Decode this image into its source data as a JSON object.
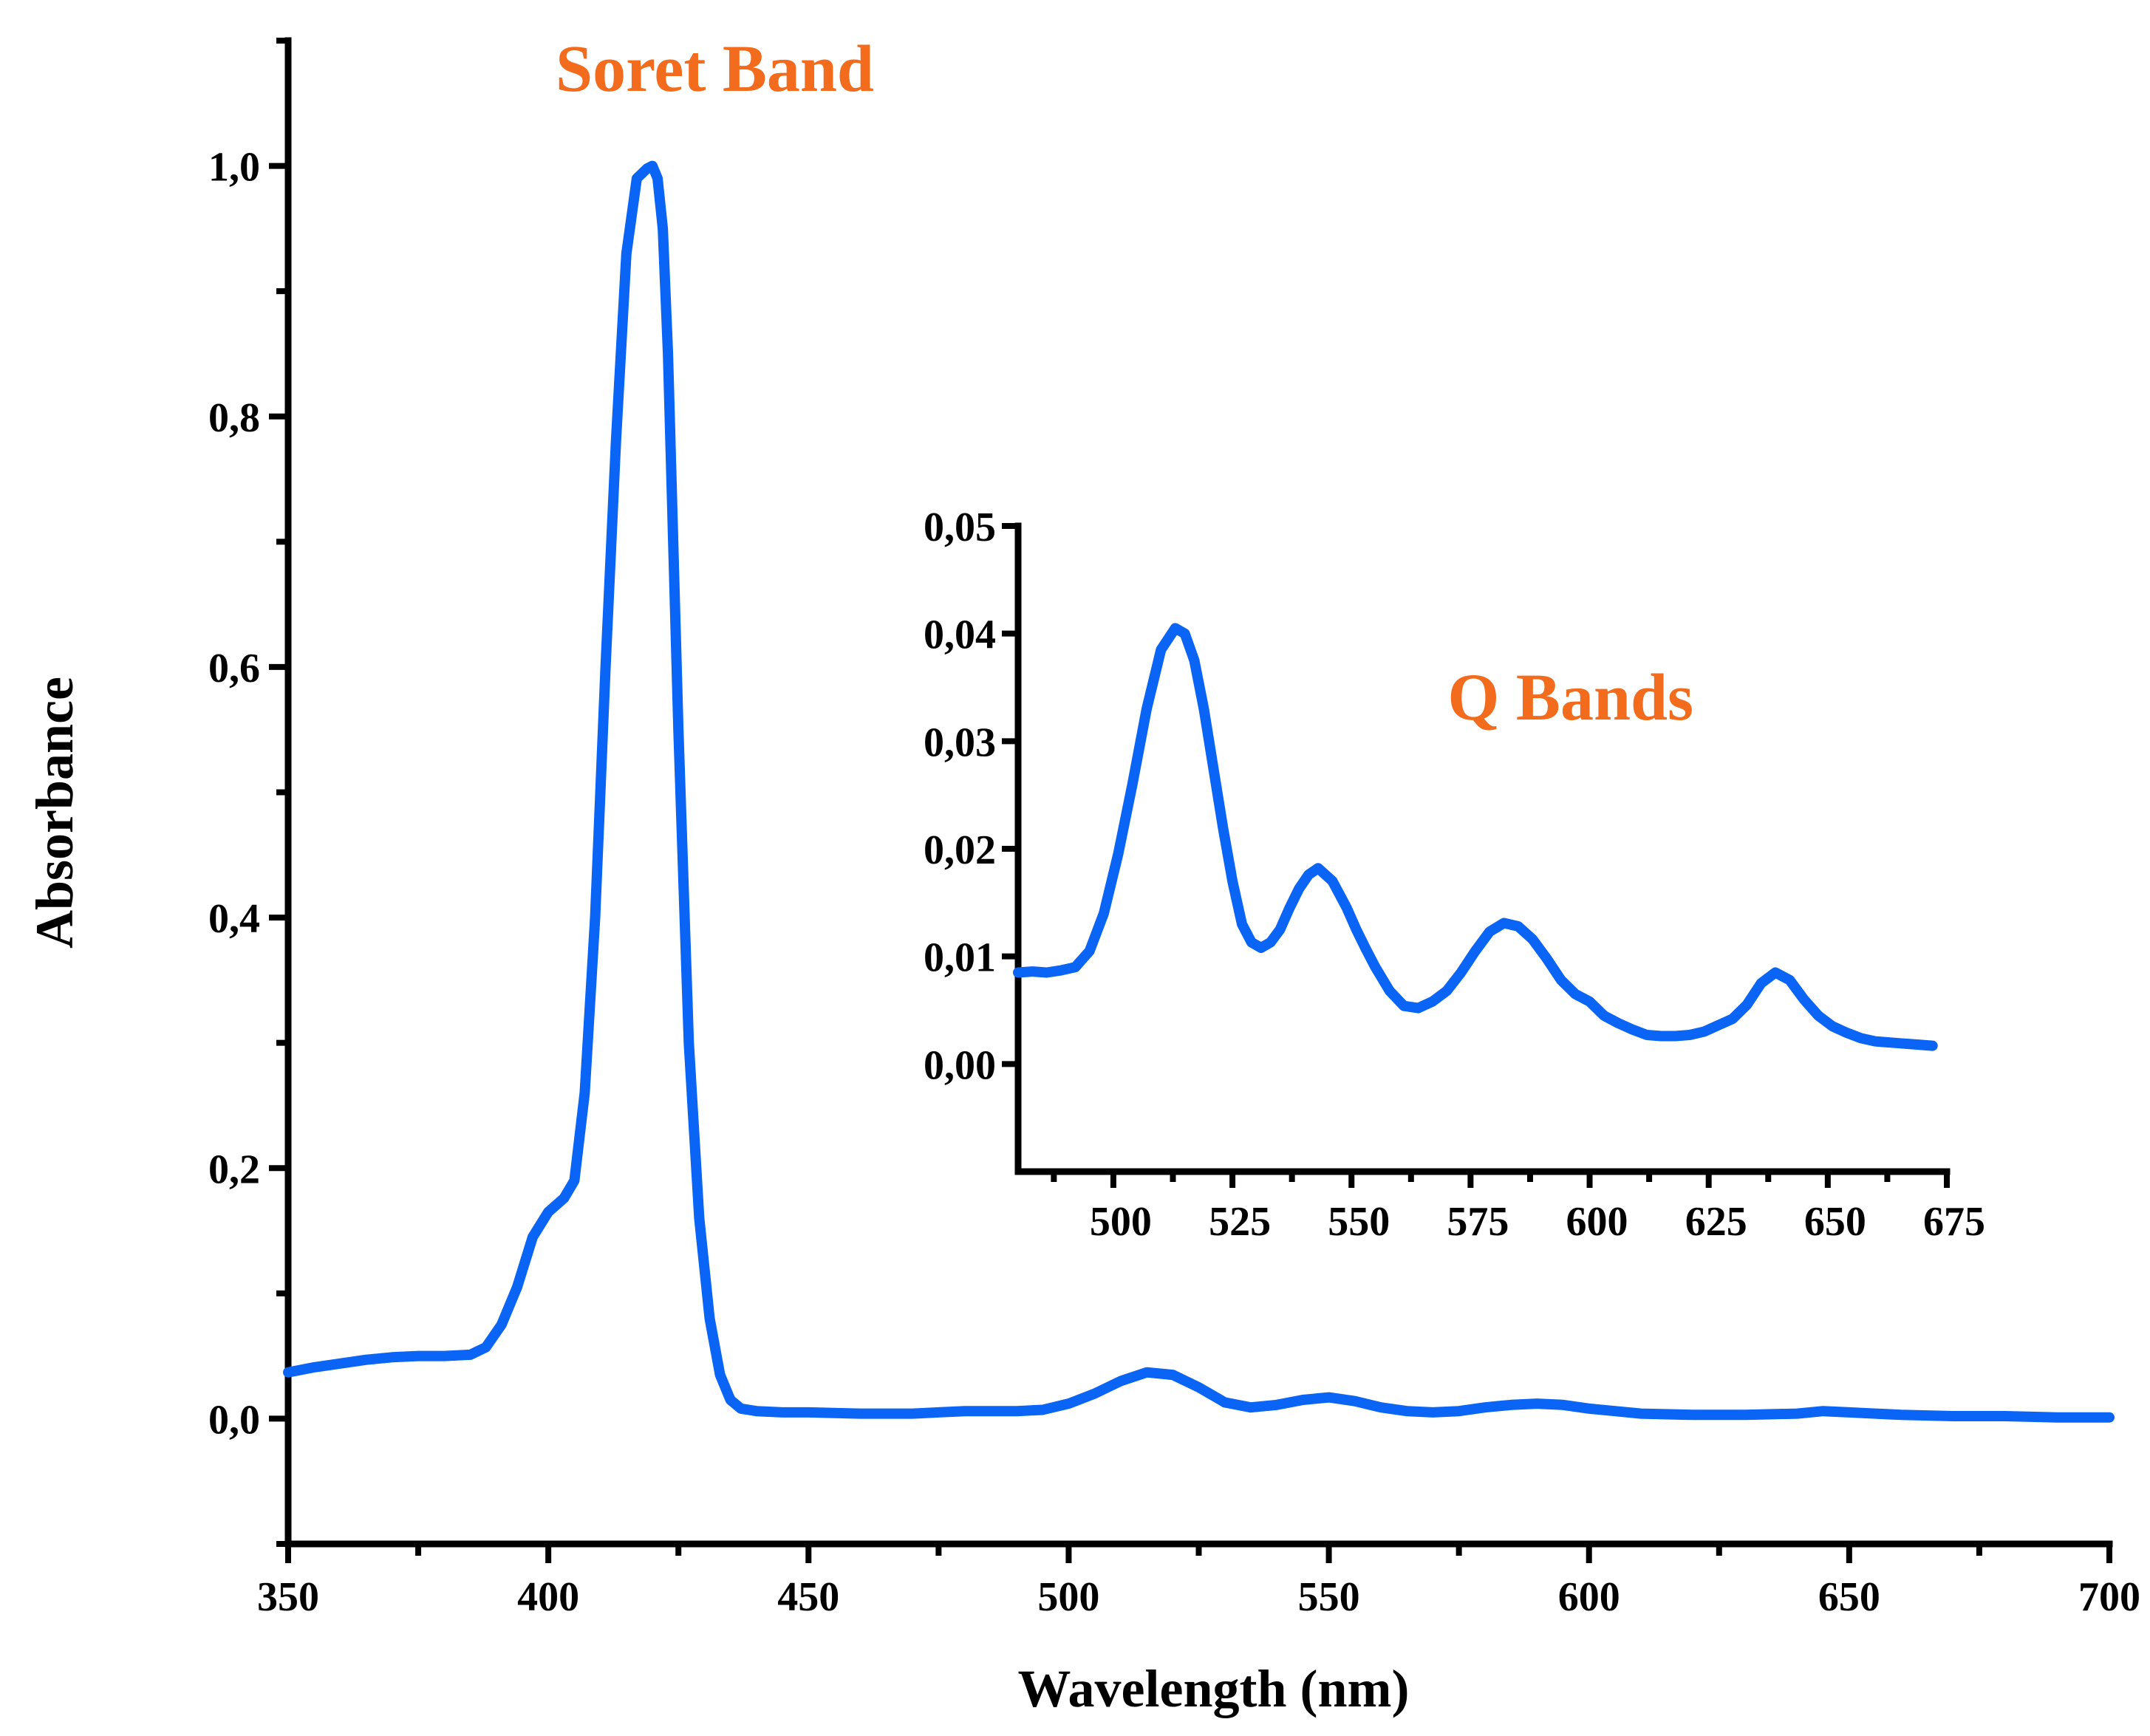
{
  "colors": {
    "series": "#0a64f5",
    "annotation": "#f36b1c",
    "axis": "#000000"
  },
  "chart_data": [
    {
      "type": "line",
      "role": "main",
      "title": "",
      "xlabel": "Wavelength (nm)",
      "ylabel": "Absorbance",
      "xlim": [
        350,
        700
      ],
      "ylim": [
        -0.1,
        1.1
      ],
      "x_ticks": [
        350,
        400,
        450,
        500,
        550,
        600,
        650,
        700
      ],
      "x_tick_labels": [
        "350",
        "400",
        "450",
        "500",
        "550",
        "600",
        "650",
        "700"
      ],
      "x_minor_ticks": [
        375,
        425,
        475,
        525,
        575,
        625,
        675
      ],
      "y_ticks": [
        0.0,
        0.2,
        0.4,
        0.6,
        0.8,
        1.0
      ],
      "y_tick_labels": [
        "0,0",
        "0,2",
        "0,4",
        "0,6",
        "0,8",
        "1,0"
      ],
      "y_minor_ticks": [
        -0.1,
        0.1,
        0.3,
        0.5,
        0.7,
        0.9,
        1.1
      ],
      "grid": false,
      "legend": "none",
      "annotations": [
        {
          "text": "Soret Band",
          "x": 432,
          "y": 1.06
        }
      ],
      "series": [
        {
          "x": [
            350,
            355,
            360,
            365,
            370,
            375,
            380,
            385,
            388,
            391,
            394,
            397,
            400,
            403,
            405,
            407,
            409,
            411,
            413,
            415,
            417,
            419,
            420,
            421,
            422,
            423,
            425,
            427,
            429,
            431,
            433,
            435,
            437,
            440,
            445,
            450,
            460,
            470,
            480,
            490,
            495,
            500,
            505,
            510,
            515,
            520,
            525,
            530,
            535,
            540,
            545,
            550,
            555,
            560,
            565,
            570,
            575,
            580,
            585,
            590,
            595,
            600,
            605,
            610,
            620,
            630,
            640,
            645,
            650,
            660,
            670,
            680,
            690,
            700
          ],
          "y": [
            0.037,
            0.041,
            0.044,
            0.047,
            0.049,
            0.05,
            0.05,
            0.051,
            0.057,
            0.075,
            0.105,
            0.145,
            0.165,
            0.176,
            0.19,
            0.26,
            0.4,
            0.6,
            0.78,
            0.93,
            0.99,
            0.998,
            1.0,
            0.99,
            0.95,
            0.85,
            0.55,
            0.3,
            0.16,
            0.08,
            0.035,
            0.015,
            0.008,
            0.006,
            0.005,
            0.005,
            0.004,
            0.004,
            0.006,
            0.006,
            0.007,
            0.012,
            0.02,
            0.03,
            0.037,
            0.035,
            0.025,
            0.013,
            0.009,
            0.011,
            0.015,
            0.017,
            0.014,
            0.009,
            0.006,
            0.005,
            0.006,
            0.009,
            0.011,
            0.012,
            0.011,
            0.008,
            0.006,
            0.004,
            0.003,
            0.003,
            0.004,
            0.006,
            0.005,
            0.003,
            0.002,
            0.002,
            0.001,
            0.001
          ]
        }
      ]
    },
    {
      "type": "line",
      "role": "inset",
      "title": "",
      "xlabel": "",
      "ylabel": "",
      "xlim": [
        480,
        675
      ],
      "ylim": [
        -0.01,
        0.05
      ],
      "x_ticks": [
        500,
        525,
        550,
        575,
        600,
        625,
        650,
        675
      ],
      "x_tick_labels": [
        "500",
        "525",
        "550",
        "575",
        "600",
        "625",
        "650",
        "675"
      ],
      "x_minor_ticks": [
        487.5,
        512.5,
        537.5,
        562.5,
        587.5,
        612.5,
        637.5,
        662.5
      ],
      "y_ticks": [
        0.0,
        0.01,
        0.02,
        0.03,
        0.04,
        0.05
      ],
      "y_tick_labels": [
        "0,00",
        "0,01",
        "0,02",
        "0,03",
        "0,04",
        "0,05"
      ],
      "grid": false,
      "legend": "none",
      "annotations": [
        {
          "text": "Q Bands",
          "x": 596,
          "y": 0.032
        }
      ],
      "series": [
        {
          "x": [
            480,
            483,
            486,
            489,
            492,
            495,
            498,
            501,
            504,
            507,
            510,
            513,
            515,
            517,
            519,
            521,
            523,
            525,
            527,
            529,
            531,
            533,
            535,
            537,
            539,
            541,
            543,
            546,
            549,
            551,
            553,
            555,
            558,
            561,
            564,
            567,
            570,
            573,
            576,
            579,
            582,
            585,
            588,
            591,
            594,
            597,
            600,
            603,
            606,
            609,
            612,
            615,
            618,
            621,
            624,
            627,
            630,
            633,
            636,
            639,
            642,
            645,
            648,
            651,
            654,
            657,
            660,
            663,
            666,
            669,
            672
          ],
          "y": [
            0.0085,
            0.0086,
            0.0085,
            0.0087,
            0.009,
            0.0105,
            0.014,
            0.0195,
            0.026,
            0.033,
            0.0385,
            0.0405,
            0.04,
            0.0375,
            0.033,
            0.0275,
            0.022,
            0.017,
            0.013,
            0.0113,
            0.0108,
            0.0113,
            0.0125,
            0.0145,
            0.0163,
            0.0176,
            0.0182,
            0.017,
            0.0145,
            0.0125,
            0.0107,
            0.009,
            0.0068,
            0.0054,
            0.0052,
            0.0058,
            0.0068,
            0.0085,
            0.0105,
            0.0123,
            0.0131,
            0.0128,
            0.0116,
            0.0098,
            0.0078,
            0.0065,
            0.0058,
            0.0045,
            0.0038,
            0.0032,
            0.0027,
            0.0026,
            0.0026,
            0.0027,
            0.003,
            0.0036,
            0.0042,
            0.0055,
            0.0075,
            0.0085,
            0.0078,
            0.006,
            0.0045,
            0.0035,
            0.0029,
            0.0024,
            0.0021,
            0.002,
            0.0019,
            0.0018,
            0.0017
          ]
        }
      ]
    }
  ]
}
